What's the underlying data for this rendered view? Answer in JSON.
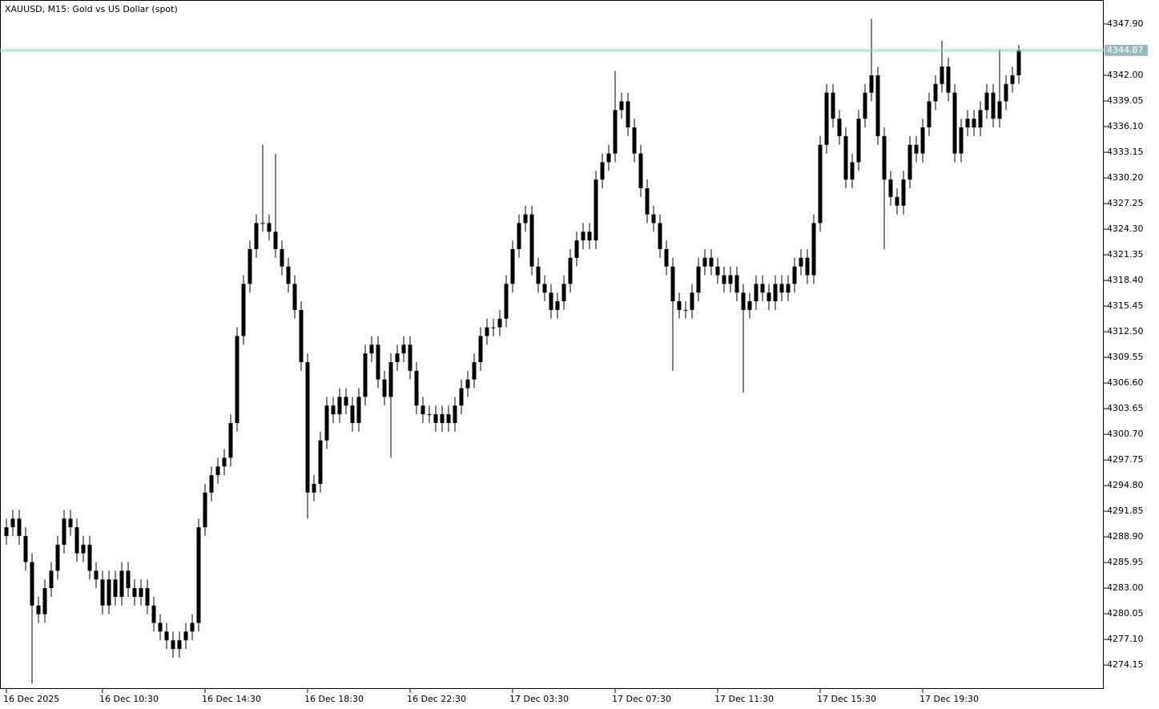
{
  "chart_data": {
    "type": "candlestick",
    "title": "XAUUSD, M15:  Gold vs US Dollar (spot)",
    "candle_color": "#000000",
    "price_line_color": "#7fd6d6",
    "current_price": 4344.87,
    "ylim": [
      4271.4,
      4350.66
    ],
    "yticks": [
      {
        "value": 4347.9,
        "label": "4347.90"
      },
      {
        "value": 4342.0,
        "label": "4342.00"
      },
      {
        "value": 4339.05,
        "label": "4339.05"
      },
      {
        "value": 4336.1,
        "label": "4336.10"
      },
      {
        "value": 4333.15,
        "label": "4333.15"
      },
      {
        "value": 4330.2,
        "label": "4330.20"
      },
      {
        "value": 4327.25,
        "label": "4327.25"
      },
      {
        "value": 4324.3,
        "label": "4324.30"
      },
      {
        "value": 4321.35,
        "label": "4321.35"
      },
      {
        "value": 4318.4,
        "label": "4318.40"
      },
      {
        "value": 4315.45,
        "label": "4315.45"
      },
      {
        "value": 4312.5,
        "label": "4312.50"
      },
      {
        "value": 4309.55,
        "label": "4309.55"
      },
      {
        "value": 4306.6,
        "label": "4306.60"
      },
      {
        "value": 4303.65,
        "label": "4303.65"
      },
      {
        "value": 4300.7,
        "label": "4300.70"
      },
      {
        "value": 4297.75,
        "label": "4297.75"
      },
      {
        "value": 4294.8,
        "label": "4294.80"
      },
      {
        "value": 4291.85,
        "label": "4291.85"
      },
      {
        "value": 4288.9,
        "label": "4288.90"
      },
      {
        "value": 4285.95,
        "label": "4285.95"
      },
      {
        "value": 4283.0,
        "label": "4283.00"
      },
      {
        "value": 4280.05,
        "label": "4280.05"
      },
      {
        "value": 4277.1,
        "label": "4277.10"
      },
      {
        "value": 4274.15,
        "label": "4274.15"
      }
    ],
    "categories": [
      "16 Dec 2025",
      null,
      null,
      null,
      null,
      null,
      null,
      null,
      null,
      null,
      null,
      null,
      null,
      null,
      null,
      "16 Dec 10:30",
      null,
      null,
      null,
      null,
      null,
      null,
      null,
      null,
      null,
      null,
      null,
      null,
      null,
      null,
      null,
      "16 Dec 14:30",
      null,
      null,
      null,
      null,
      null,
      null,
      null,
      null,
      null,
      null,
      null,
      null,
      null,
      null,
      null,
      "16 Dec 18:30",
      null,
      null,
      null,
      null,
      null,
      null,
      null,
      null,
      null,
      null,
      null,
      null,
      null,
      null,
      null,
      "16 Dec 22:30",
      null,
      null,
      null,
      null,
      null,
      null,
      null,
      null,
      null,
      null,
      null,
      null,
      null,
      null,
      null,
      "17 Dec 03:30",
      null,
      null,
      null,
      null,
      null,
      null,
      null,
      null,
      null,
      null,
      null,
      null,
      null,
      null,
      null,
      "17 Dec 07:30",
      null,
      null,
      null,
      null,
      null,
      null,
      null,
      null,
      null,
      null,
      null,
      null,
      null,
      null,
      null,
      "17 Dec 11:30",
      null,
      null,
      null,
      null,
      null,
      null,
      null,
      null,
      null,
      null,
      null,
      null,
      null,
      null,
      null,
      "17 Dec 15:30",
      null,
      null,
      null,
      null,
      null,
      null,
      null,
      null,
      null,
      null,
      null,
      null,
      null,
      null,
      null,
      "17 Dec 19:30",
      null,
      null,
      null,
      null,
      null,
      null,
      null,
      null,
      null,
      null,
      null,
      null,
      null,
      null,
      null
    ],
    "open": [
      4289,
      4290,
      4291,
      4289,
      4286,
      4281,
      4280,
      4283,
      4285,
      4288,
      4291,
      4290,
      4287,
      4288,
      4285,
      4284,
      4281,
      4284,
      4282,
      4285,
      4283,
      4282,
      4283,
      4281,
      4279,
      4278,
      4277,
      4276,
      4277,
      4278,
      4279,
      4290,
      4294,
      4296,
      4297,
      4298,
      4302,
      4312,
      4318,
      4322,
      4325,
      4325,
      4324,
      4322,
      4320,
      4318,
      4315,
      4309,
      4294,
      4295,
      4300,
      4304,
      4303,
      4305,
      4304,
      4302,
      4305,
      4310,
      4311,
      4307,
      4305,
      4309,
      4310,
      4311,
      4308,
      4304,
      4303,
      4303,
      4302,
      4303,
      4302,
      4304,
      4306,
      4307,
      4309,
      4312,
      4313,
      4313,
      4314,
      4318,
      4322,
      4325,
      4326,
      4320,
      4318,
      4317,
      4315,
      4316,
      4318,
      4321,
      4323,
      4324,
      4323,
      4330,
      4332,
      4333,
      4338,
      4339,
      4336,
      4333,
      4329,
      4326,
      4325,
      4322,
      4320,
      4316,
      4315,
      4315,
      4317,
      4320,
      4321,
      4320,
      4319,
      4318,
      4319,
      4317,
      4315,
      4316,
      4318,
      4317,
      4316,
      4318,
      4317,
      4318,
      4320,
      4321,
      4319,
      4325,
      4334,
      4340,
      4337,
      4335,
      4330,
      4332,
      4337,
      4340,
      4342,
      4335,
      4330,
      4328,
      4327,
      4330,
      4334,
      4333,
      4336,
      4339,
      4341,
      4343,
      4340,
      4333,
      4336,
      4337,
      4336,
      4338,
      4340,
      4337,
      4339,
      4341,
      4342
    ],
    "high": [
      4291,
      4292,
      4292,
      4290,
      4287,
      4282,
      4284,
      4286,
      4289,
      4292,
      4292,
      4291,
      4289,
      4289,
      4286,
      4285,
      4285,
      4285,
      4286,
      4286,
      4284,
      4284,
      4284,
      4282,
      4280,
      4279,
      4278,
      4278,
      4279,
      4280,
      4291,
      4295,
      4297,
      4298,
      4299,
      4303,
      4313,
      4319,
      4323,
      4326,
      4334,
      4326,
      4333,
      4323,
      4321,
      4319,
      4316,
      4310,
      4296,
      4301,
      4305,
      4305,
      4306,
      4306,
      4305,
      4306,
      4311,
      4312,
      4312,
      4308,
      4310,
      4311,
      4312,
      4312,
      4309,
      4305,
      4304,
      4304,
      4304,
      4304,
      4305,
      4307,
      4308,
      4310,
      4313,
      4314,
      4314,
      4315,
      4319,
      4323,
      4326,
      4327,
      4327,
      4321,
      4319,
      4318,
      4317,
      4319,
      4322,
      4324,
      4325,
      4325,
      4331,
      4333,
      4334,
      4342.5,
      4340,
      4340,
      4337,
      4334,
      4330,
      4327,
      4326,
      4323,
      4321,
      4317,
      4316,
      4318,
      4321,
      4322,
      4322,
      4321,
      4320,
      4320,
      4320,
      4318,
      4317,
      4319,
      4319,
      4318,
      4319,
      4319,
      4319,
      4321,
      4322,
      4322,
      4326,
      4335,
      4341,
      4341,
      4338,
      4336,
      4333,
      4338,
      4341,
      4348.5,
      4343,
      4336,
      4331,
      4329,
      4331,
      4335,
      4335,
      4337,
      4340,
      4342,
      4346,
      4344,
      4341,
      4337,
      4338,
      4338,
      4339,
      4341,
      4341,
      4345,
      4342,
      4343,
      4345.5
    ],
    "low": [
      4288,
      4289,
      4288,
      4285,
      4272,
      4279,
      4279,
      4282,
      4284,
      4287,
      4289,
      4286,
      4286,
      4284,
      4283,
      4280,
      4280,
      4281,
      4281,
      4282,
      4281,
      4281,
      4280,
      4278,
      4277,
      4276,
      4275,
      4275,
      4276,
      4277,
      4278,
      4289,
      4293,
      4295,
      4296,
      4297,
      4301,
      4311,
      4317,
      4321,
      4324,
      4323,
      4321,
      4319,
      4317,
      4314,
      4308,
      4291,
      4293,
      4294,
      4299,
      4302,
      4302,
      4303,
      4301,
      4301,
      4304,
      4309,
      4306,
      4304,
      4298,
      4308,
      4309,
      4307,
      4303,
      4302,
      4302,
      4301,
      4301,
      4301,
      4301,
      4303,
      4305,
      4306,
      4308,
      4311,
      4312,
      4312,
      4313,
      4317,
      4321,
      4324,
      4319,
      4317,
      4316,
      4314,
      4314,
      4315,
      4317,
      4320,
      4322,
      4322,
      4322,
      4329,
      4331,
      4332,
      4337,
      4335,
      4332,
      4328,
      4325,
      4324,
      4321,
      4319,
      4308,
      4314,
      4314,
      4314,
      4316,
      4319,
      4319,
      4318,
      4317,
      4317,
      4316,
      4305.5,
      4314,
      4315,
      4316,
      4315,
      4315,
      4316,
      4316,
      4317,
      4319,
      4318,
      4318,
      4324,
      4333,
      4336,
      4334,
      4329,
      4329,
      4331,
      4336,
      4339,
      4334,
      4322,
      4327,
      4326,
      4326,
      4329,
      4332,
      4332,
      4335,
      4338,
      4340,
      4339,
      4332,
      4332,
      4335,
      4335,
      4335,
      4337,
      4336,
      4336,
      4338,
      4340,
      4341
    ],
    "close": [
      4290,
      4291,
      4289,
      4286,
      4281,
      4280,
      4283,
      4285,
      4288,
      4291,
      4290,
      4287,
      4288,
      4285,
      4284,
      4281,
      4284,
      4282,
      4285,
      4283,
      4282,
      4283,
      4281,
      4279,
      4278,
      4277,
      4276,
      4277,
      4278,
      4279,
      4290,
      4294,
      4296,
      4297,
      4298,
      4302,
      4312,
      4318,
      4322,
      4325,
      4325,
      4324,
      4322,
      4320,
      4318,
      4315,
      4309,
      4294,
      4295,
      4300,
      4304,
      4303,
      4305,
      4304,
      4302,
      4305,
      4310,
      4311,
      4307,
      4305,
      4309,
      4310,
      4311,
      4308,
      4304,
      4303,
      4303,
      4302,
      4303,
      4302,
      4304,
      4306,
      4307,
      4309,
      4312,
      4313,
      4313,
      4314,
      4318,
      4322,
      4325,
      4326,
      4320,
      4318,
      4317,
      4315,
      4316,
      4318,
      4321,
      4323,
      4324,
      4323,
      4330,
      4332,
      4333,
      4338,
      4339,
      4336,
      4333,
      4329,
      4326,
      4325,
      4322,
      4320,
      4316,
      4315,
      4315,
      4317,
      4320,
      4321,
      4320,
      4319,
      4318,
      4319,
      4317,
      4315,
      4316,
      4318,
      4317,
      4316,
      4318,
      4317,
      4318,
      4320,
      4321,
      4319,
      4325,
      4334,
      4340,
      4337,
      4335,
      4330,
      4332,
      4337,
      4340,
      4342,
      4335,
      4330,
      4328,
      4327,
      4330,
      4334,
      4333,
      4336,
      4339,
      4341,
      4343,
      4340,
      4333,
      4336,
      4337,
      4336,
      4338,
      4340,
      4337,
      4339,
      4341,
      4342,
      4344.87
    ]
  }
}
